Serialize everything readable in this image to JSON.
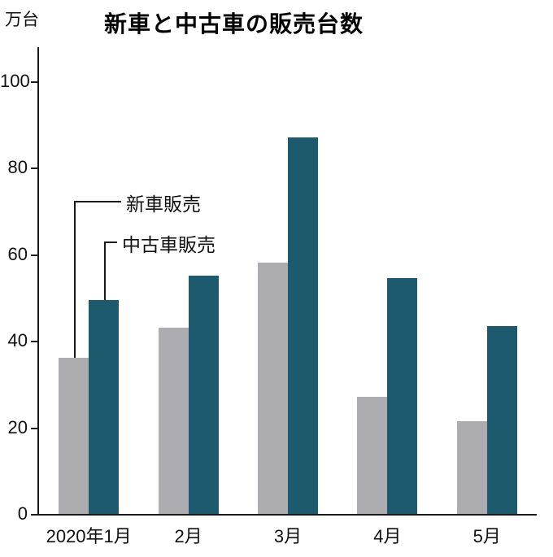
{
  "chart_data": {
    "type": "bar",
    "title": "新車と中古車の販売台数",
    "y_unit_label": "万台",
    "categories": [
      "2020年1月",
      "2月",
      "3月",
      "4月",
      "5月"
    ],
    "series": [
      {
        "name": "新車販売",
        "color": "#adacb0",
        "values": [
          36,
          43,
          58,
          27,
          21.5
        ]
      },
      {
        "name": "中古車販売",
        "color": "#1e5a6e",
        "values": [
          49.5,
          55,
          87,
          54.5,
          43.5
        ]
      }
    ],
    "ylim": [
      0,
      100
    ],
    "yticks": [
      0,
      20,
      40,
      60,
      80,
      100
    ],
    "grid": false,
    "legend": "inline-callouts-pointing-to-january-bars",
    "axis_color": "#1a1a1a"
  }
}
